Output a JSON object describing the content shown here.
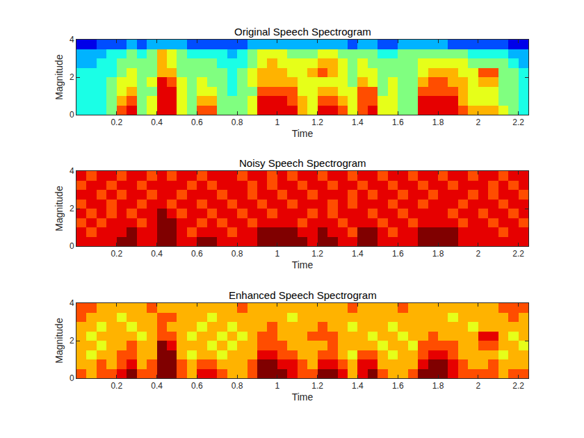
{
  "chart_data": [
    {
      "type": "heatmap",
      "title": "Original Speech Spectrogram",
      "x_label": "Time",
      "y_label": "Magnitude",
      "xlim": [
        0,
        2.25
      ],
      "xticks": [
        0.2,
        0.4,
        0.6,
        0.8,
        1,
        1.2,
        1.4,
        1.6,
        1.8,
        2,
        2.2
      ],
      "ylim": [
        0,
        4
      ],
      "yticks": [
        0,
        2,
        4
      ],
      "zlim": [
        0,
        10
      ],
      "x": [
        0.025,
        0.075,
        0.125,
        0.175,
        0.225,
        0.275,
        0.325,
        0.375,
        0.425,
        0.475,
        0.525,
        0.575,
        0.625,
        0.675,
        0.725,
        0.775,
        0.825,
        0.875,
        0.925,
        0.975,
        1.025,
        1.075,
        1.125,
        1.175,
        1.225,
        1.275,
        1.325,
        1.375,
        1.425,
        1.475,
        1.525,
        1.575,
        1.625,
        1.675,
        1.725,
        1.775,
        1.825,
        1.875,
        1.925,
        1.975,
        2.025,
        2.075,
        2.125,
        2.175,
        2.225
      ],
      "y": [
        0.25,
        0.75,
        1.25,
        1.75,
        2.25,
        2.75,
        3.25,
        3.75
      ],
      "z": [
        [
          4,
          4,
          4,
          5,
          8,
          9,
          5,
          6,
          9,
          9,
          6,
          5,
          8,
          8,
          5,
          5,
          5,
          6,
          9,
          9,
          9,
          9,
          7,
          6,
          9,
          9,
          8,
          6,
          8,
          9,
          6,
          6,
          5,
          5,
          9,
          9,
          9,
          9,
          8,
          7,
          7,
          7,
          6,
          5,
          4
        ],
        [
          4,
          4,
          4,
          5,
          7,
          8,
          5,
          6,
          9,
          9,
          6,
          5,
          7,
          7,
          5,
          5,
          5,
          6,
          9,
          9,
          9,
          8,
          7,
          6,
          8,
          8,
          7,
          6,
          8,
          8,
          6,
          6,
          5,
          5,
          9,
          9,
          9,
          9,
          7,
          6,
          6,
          6,
          5,
          5,
          4
        ],
        [
          4,
          4,
          4,
          5,
          6,
          7,
          5,
          5,
          9,
          9,
          6,
          5,
          6,
          6,
          5,
          4,
          5,
          5,
          8,
          8,
          8,
          8,
          6,
          6,
          7,
          7,
          6,
          6,
          8,
          8,
          5,
          6,
          5,
          5,
          8,
          8,
          8,
          8,
          7,
          6,
          6,
          6,
          5,
          5,
          4
        ],
        [
          4,
          4,
          4,
          5,
          6,
          6,
          5,
          6,
          9,
          8,
          6,
          5,
          6,
          5,
          5,
          4,
          5,
          6,
          7,
          7,
          7,
          7,
          6,
          6,
          6,
          6,
          6,
          5,
          7,
          6,
          5,
          6,
          5,
          5,
          7,
          8,
          8,
          7,
          7,
          6,
          7,
          7,
          5,
          5,
          4
        ],
        [
          4,
          4,
          4,
          4,
          5,
          6,
          5,
          5,
          7,
          7,
          5,
          5,
          5,
          5,
          5,
          4,
          5,
          6,
          7,
          7,
          7,
          6,
          6,
          7,
          8,
          7,
          6,
          5,
          6,
          6,
          5,
          5,
          5,
          5,
          6,
          7,
          7,
          7,
          6,
          6,
          8,
          8,
          5,
          5,
          4
        ],
        [
          3,
          3,
          4,
          4,
          5,
          5,
          5,
          5,
          7,
          6,
          5,
          5,
          5,
          5,
          4,
          4,
          4,
          5,
          6,
          7,
          6,
          6,
          6,
          6,
          7,
          7,
          6,
          5,
          6,
          5,
          5,
          5,
          5,
          5,
          6,
          6,
          6,
          6,
          6,
          5,
          5,
          5,
          5,
          4,
          3
        ],
        [
          3,
          3,
          3,
          4,
          4,
          5,
          4,
          5,
          7,
          6,
          5,
          4,
          4,
          4,
          4,
          3,
          4,
          5,
          6,
          6,
          6,
          5,
          5,
          5,
          6,
          6,
          5,
          5,
          5,
          5,
          4,
          4,
          5,
          5,
          5,
          5,
          5,
          5,
          5,
          4,
          4,
          4,
          4,
          3,
          3
        ],
        [
          1,
          1,
          2,
          2,
          2,
          3,
          2,
          3,
          3,
          3,
          3,
          2,
          2,
          2,
          2,
          2,
          2,
          3,
          3,
          3,
          3,
          3,
          3,
          3,
          3,
          3,
          3,
          2,
          3,
          3,
          2,
          2,
          3,
          3,
          3,
          3,
          3,
          2,
          2,
          2,
          2,
          2,
          2,
          1,
          1
        ]
      ]
    },
    {
      "type": "heatmap",
      "title": "Noisy Speech Spectrogram",
      "x_label": "Time",
      "y_label": "Magnitude",
      "xlim": [
        0,
        2.25
      ],
      "xticks": [
        0.2,
        0.4,
        0.6,
        0.8,
        1,
        1.2,
        1.4,
        1.6,
        1.8,
        2,
        2.2
      ],
      "ylim": [
        0,
        4
      ],
      "yticks": [
        0,
        2,
        4
      ],
      "zlim": [
        0,
        10
      ],
      "x": [
        0.025,
        0.075,
        0.125,
        0.175,
        0.225,
        0.275,
        0.325,
        0.375,
        0.425,
        0.475,
        0.525,
        0.575,
        0.625,
        0.675,
        0.725,
        0.775,
        0.825,
        0.875,
        0.925,
        0.975,
        1.025,
        1.075,
        1.125,
        1.175,
        1.225,
        1.275,
        1.325,
        1.375,
        1.425,
        1.475,
        1.525,
        1.575,
        1.625,
        1.675,
        1.725,
        1.775,
        1.825,
        1.875,
        1.925,
        1.975,
        2.025,
        2.075,
        2.125,
        2.175,
        2.225
      ],
      "y": [
        0.25,
        0.75,
        1.25,
        1.75,
        2.25,
        2.75,
        3.25,
        3.75
      ],
      "z": [
        [
          9,
          9,
          9,
          9,
          10,
          10,
          9,
          9,
          10,
          10,
          9,
          9,
          10,
          10,
          9,
          9,
          9,
          9,
          10,
          10,
          10,
          10,
          10,
          9,
          10,
          10,
          9,
          9,
          10,
          10,
          9,
          9,
          9,
          9,
          10,
          10,
          10,
          10,
          9,
          9,
          9,
          9,
          9,
          9,
          9
        ],
        [
          9,
          8,
          9,
          9,
          9,
          10,
          9,
          9,
          10,
          10,
          9,
          8,
          9,
          9,
          9,
          8,
          9,
          9,
          10,
          10,
          10,
          10,
          9,
          9,
          10,
          9,
          9,
          8,
          10,
          10,
          9,
          8,
          9,
          9,
          10,
          10,
          10,
          10,
          9,
          9,
          9,
          9,
          8,
          9,
          9
        ],
        [
          8,
          9,
          8,
          9,
          9,
          9,
          8,
          9,
          10,
          10,
          9,
          9,
          8,
          9,
          8,
          9,
          9,
          8,
          9,
          9,
          9,
          9,
          8,
          9,
          9,
          9,
          8,
          9,
          9,
          9,
          8,
          9,
          9,
          8,
          9,
          9,
          9,
          9,
          8,
          9,
          9,
          8,
          9,
          9,
          8
        ],
        [
          9,
          8,
          9,
          8,
          9,
          8,
          9,
          9,
          10,
          9,
          8,
          9,
          9,
          8,
          9,
          9,
          8,
          9,
          9,
          8,
          9,
          9,
          9,
          8,
          9,
          8,
          9,
          9,
          9,
          8,
          9,
          9,
          8,
          9,
          9,
          9,
          9,
          8,
          9,
          9,
          8,
          9,
          9,
          8,
          9
        ],
        [
          8,
          9,
          9,
          8,
          9,
          9,
          8,
          9,
          9,
          8,
          9,
          9,
          8,
          9,
          9,
          8,
          9,
          9,
          8,
          9,
          9,
          8,
          9,
          9,
          9,
          8,
          9,
          8,
          9,
          9,
          9,
          8,
          9,
          9,
          8,
          9,
          9,
          9,
          8,
          9,
          9,
          9,
          8,
          9,
          9
        ],
        [
          9,
          9,
          8,
          9,
          8,
          9,
          9,
          8,
          9,
          9,
          8,
          9,
          9,
          9,
          8,
          9,
          9,
          8,
          9,
          9,
          8,
          9,
          9,
          8,
          9,
          9,
          9,
          8,
          9,
          8,
          9,
          9,
          8,
          9,
          9,
          8,
          9,
          9,
          9,
          8,
          9,
          8,
          9,
          9,
          8
        ],
        [
          8,
          9,
          9,
          8,
          9,
          9,
          8,
          9,
          9,
          9,
          9,
          8,
          9,
          8,
          9,
          9,
          9,
          8,
          9,
          8,
          9,
          9,
          8,
          9,
          9,
          8,
          9,
          9,
          8,
          9,
          9,
          8,
          9,
          9,
          8,
          9,
          9,
          8,
          9,
          9,
          9,
          8,
          9,
          8,
          9
        ],
        [
          9,
          8,
          9,
          9,
          8,
          9,
          9,
          8,
          9,
          8,
          9,
          9,
          8,
          9,
          9,
          9,
          8,
          9,
          9,
          8,
          9,
          8,
          9,
          9,
          8,
          9,
          9,
          8,
          9,
          9,
          8,
          9,
          9,
          8,
          9,
          9,
          8,
          9,
          9,
          8,
          9,
          9,
          8,
          9,
          9
        ]
      ]
    },
    {
      "type": "heatmap",
      "title": "Enhanced Speech Spectrogram",
      "x_label": "Time",
      "y_label": "Magnitude",
      "xlim": [
        0,
        2.25
      ],
      "xticks": [
        0.2,
        0.4,
        0.6,
        0.8,
        1,
        1.2,
        1.4,
        1.6,
        1.8,
        2,
        2.2
      ],
      "ylim": [
        0,
        4
      ],
      "yticks": [
        0,
        2,
        4
      ],
      "zlim": [
        0,
        10
      ],
      "x": [
        0.025,
        0.075,
        0.125,
        0.175,
        0.225,
        0.275,
        0.325,
        0.375,
        0.425,
        0.475,
        0.525,
        0.575,
        0.625,
        0.675,
        0.725,
        0.775,
        0.825,
        0.875,
        0.925,
        0.975,
        1.025,
        1.075,
        1.125,
        1.175,
        1.225,
        1.275,
        1.325,
        1.375,
        1.425,
        1.475,
        1.525,
        1.575,
        1.625,
        1.675,
        1.725,
        1.775,
        1.825,
        1.875,
        1.925,
        1.975,
        2.025,
        2.075,
        2.125,
        2.175,
        2.225
      ],
      "y": [
        0.25,
        0.75,
        1.25,
        1.75,
        2.25,
        2.75,
        3.25,
        3.75
      ],
      "z": [
        [
          8,
          7,
          8,
          8,
          9,
          10,
          8,
          8,
          10,
          10,
          8,
          7,
          9,
          9,
          8,
          7,
          7,
          8,
          10,
          10,
          10,
          9,
          8,
          8,
          10,
          10,
          9,
          7,
          9,
          10,
          8,
          7,
          7,
          8,
          10,
          10,
          10,
          9,
          8,
          8,
          8,
          8,
          7,
          8,
          8
        ],
        [
          7,
          7,
          8,
          7,
          8,
          9,
          7,
          8,
          10,
          10,
          8,
          7,
          8,
          8,
          7,
          7,
          7,
          8,
          10,
          10,
          9,
          9,
          8,
          7,
          9,
          9,
          8,
          7,
          9,
          9,
          7,
          7,
          7,
          7,
          9,
          10,
          10,
          9,
          8,
          7,
          7,
          8,
          7,
          7,
          7
        ],
        [
          7,
          6,
          7,
          7,
          8,
          8,
          7,
          7,
          10,
          10,
          7,
          6,
          7,
          7,
          6,
          7,
          7,
          7,
          9,
          9,
          8,
          8,
          7,
          7,
          8,
          8,
          7,
          6,
          8,
          8,
          7,
          6,
          7,
          7,
          8,
          9,
          9,
          8,
          7,
          7,
          7,
          7,
          6,
          7,
          7
        ],
        [
          7,
          7,
          6,
          7,
          7,
          8,
          7,
          7,
          10,
          9,
          7,
          7,
          7,
          6,
          7,
          6,
          7,
          7,
          8,
          8,
          8,
          7,
          7,
          7,
          7,
          8,
          7,
          7,
          7,
          7,
          6,
          7,
          7,
          6,
          8,
          8,
          8,
          8,
          7,
          7,
          8,
          8,
          7,
          7,
          6
        ],
        [
          7,
          6,
          7,
          7,
          7,
          7,
          6,
          7,
          8,
          8,
          7,
          6,
          7,
          7,
          6,
          7,
          6,
          7,
          8,
          8,
          7,
          7,
          7,
          8,
          8,
          8,
          7,
          7,
          7,
          6,
          7,
          7,
          6,
          7,
          7,
          8,
          7,
          7,
          7,
          7,
          9,
          9,
          7,
          6,
          7
        ],
        [
          7,
          7,
          6,
          7,
          7,
          6,
          7,
          7,
          8,
          7,
          7,
          7,
          6,
          7,
          7,
          6,
          7,
          7,
          7,
          8,
          7,
          7,
          7,
          7,
          8,
          7,
          7,
          6,
          7,
          7,
          7,
          6,
          7,
          7,
          7,
          7,
          7,
          7,
          7,
          6,
          7,
          7,
          7,
          7,
          7
        ],
        [
          8,
          7,
          7,
          7,
          6,
          7,
          7,
          7,
          8,
          8,
          7,
          7,
          7,
          6,
          7,
          7,
          7,
          7,
          7,
          7,
          7,
          6,
          7,
          7,
          7,
          7,
          7,
          7,
          7,
          7,
          7,
          7,
          7,
          7,
          7,
          7,
          7,
          6,
          7,
          7,
          7,
          7,
          7,
          8,
          7
        ],
        [
          8,
          8,
          7,
          7,
          7,
          7,
          7,
          8,
          7,
          7,
          7,
          7,
          7,
          7,
          7,
          7,
          8,
          7,
          7,
          7,
          7,
          7,
          7,
          7,
          7,
          7,
          7,
          8,
          7,
          7,
          7,
          7,
          8,
          7,
          7,
          7,
          7,
          7,
          7,
          7,
          7,
          7,
          8,
          8,
          8
        ]
      ]
    }
  ]
}
